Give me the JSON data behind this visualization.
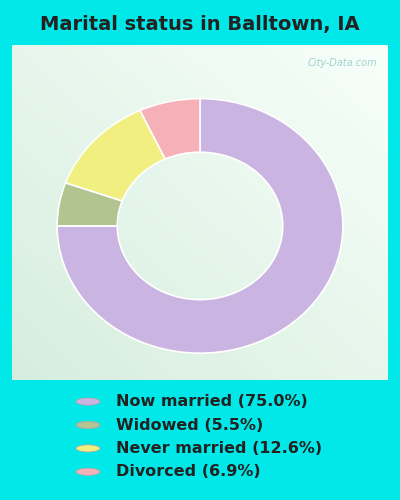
{
  "title": "Marital status in Balltown, IA",
  "values": [
    75.0,
    5.5,
    12.6,
    6.9
  ],
  "labels": [
    "Now married (75.0%)",
    "Widowed (5.5%)",
    "Never married (12.6%)",
    "Divorced (6.9%)"
  ],
  "colors": [
    "#c9b4e2",
    "#b2c490",
    "#f0ef80",
    "#f5b0b8"
  ],
  "outer_bg": "#00e8e8",
  "chart_bg_tl": "#e8f5f0",
  "chart_bg_br": "#d0e8d8",
  "watermark": "City-Data.com",
  "title_fontsize": 14,
  "legend_fontsize": 11.5,
  "start_angle": 90,
  "donut_outer": 0.38,
  "donut_inner": 0.22
}
